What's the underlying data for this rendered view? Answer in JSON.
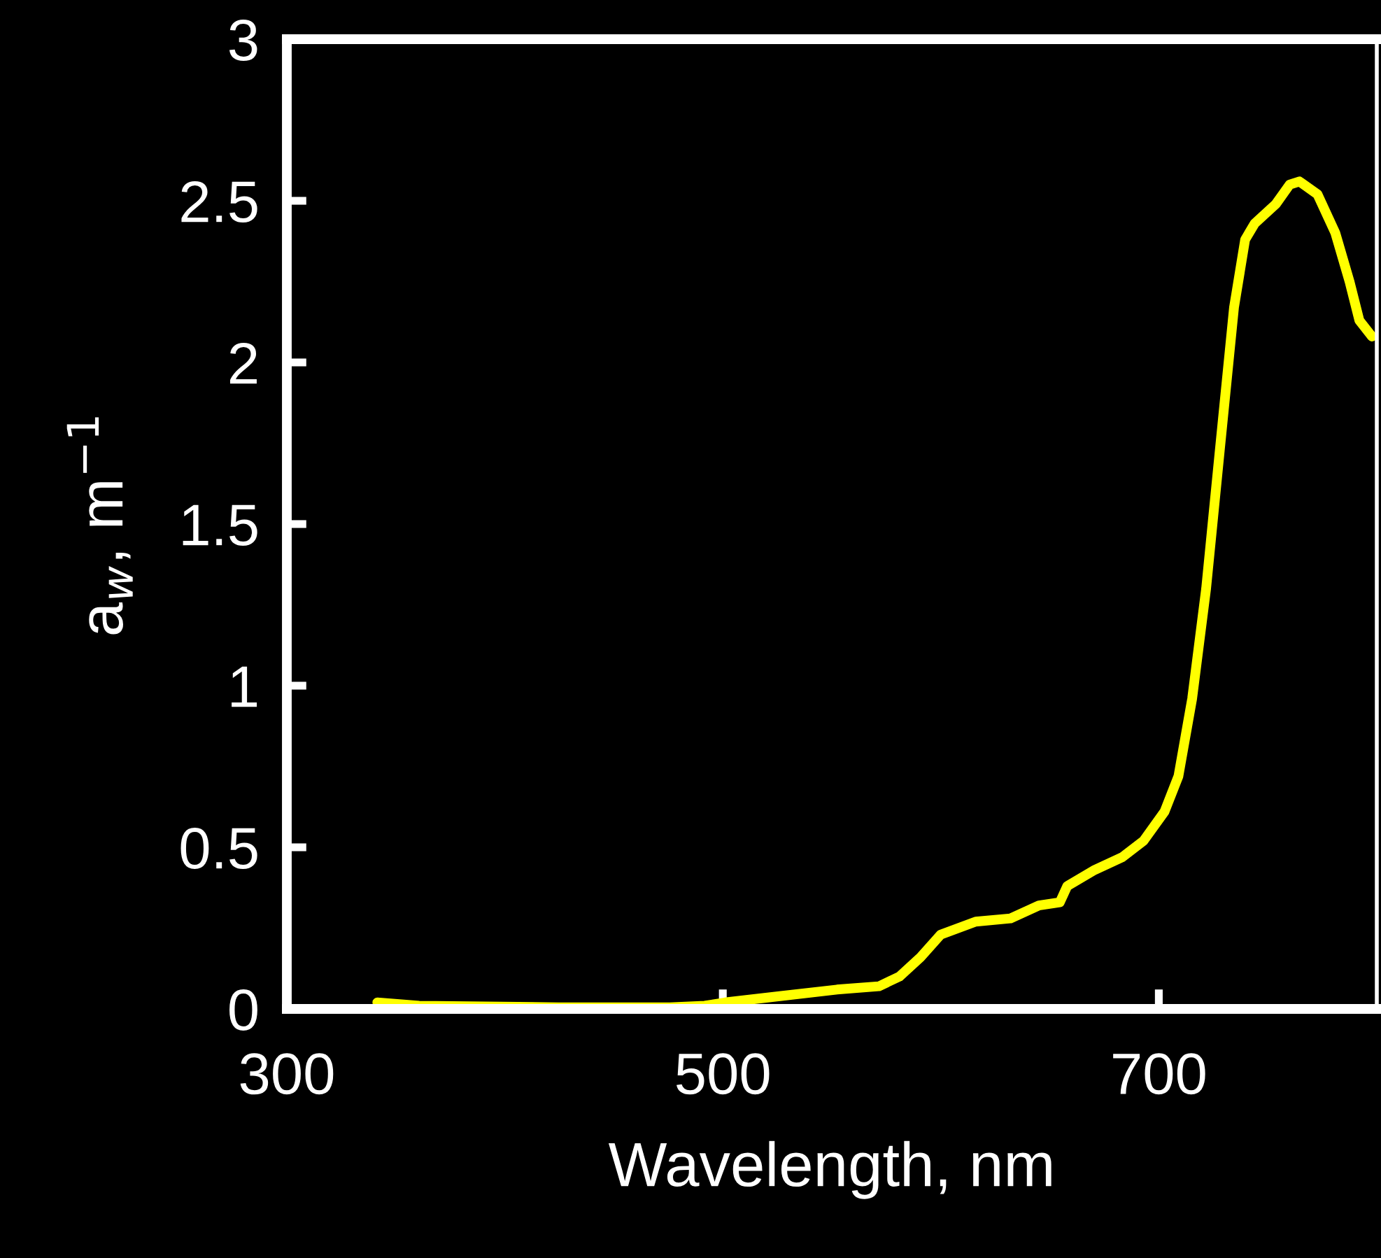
{
  "chart_data": {
    "type": "line",
    "xlabel": "Wavelength, nm",
    "ylabel": "a$_{w}$, m$^{−1}$",
    "x": [
      341.5,
      360.7,
      424.6,
      475.7,
      491.7,
      501,
      526.8,
      552.4,
      571.6,
      581,
      590.7,
      600,
      616,
      632,
      645,
      654.6,
      658,
      670.6,
      683.4,
      693,
      702.6,
      709,
      715.3,
      721.7,
      728,
      734.5,
      739.6,
      744,
      753.7,
      760,
      764.5,
      772.8,
      781,
      787.5,
      792,
      797.8
    ],
    "series": [
      {
        "color": "#ffff00",
        "values": [
          0.02,
          0.01,
          0.005,
          0.005,
          0.01,
          0.02,
          0.04,
          0.06,
          0.07,
          0.1,
          0.16,
          0.23,
          0.27,
          0.28,
          0.32,
          0.33,
          0.38,
          0.43,
          0.47,
          0.52,
          0.61,
          0.72,
          0.96,
          1.3,
          1.73,
          2.17,
          2.38,
          2.43,
          2.49,
          2.55,
          2.56,
          2.52,
          2.4,
          2.25,
          2.13,
          2.08
        ]
      }
    ],
    "xlim": [
      300,
      800
    ],
    "xticks": [
      300,
      500,
      700
    ],
    "ylim": [
      0,
      3
    ],
    "yticks": [
      0,
      0.5,
      1,
      1.5,
      2,
      2.5,
      3
    ],
    "grid": false,
    "legend": false,
    "marker": "none",
    "line_style": "solid"
  }
}
